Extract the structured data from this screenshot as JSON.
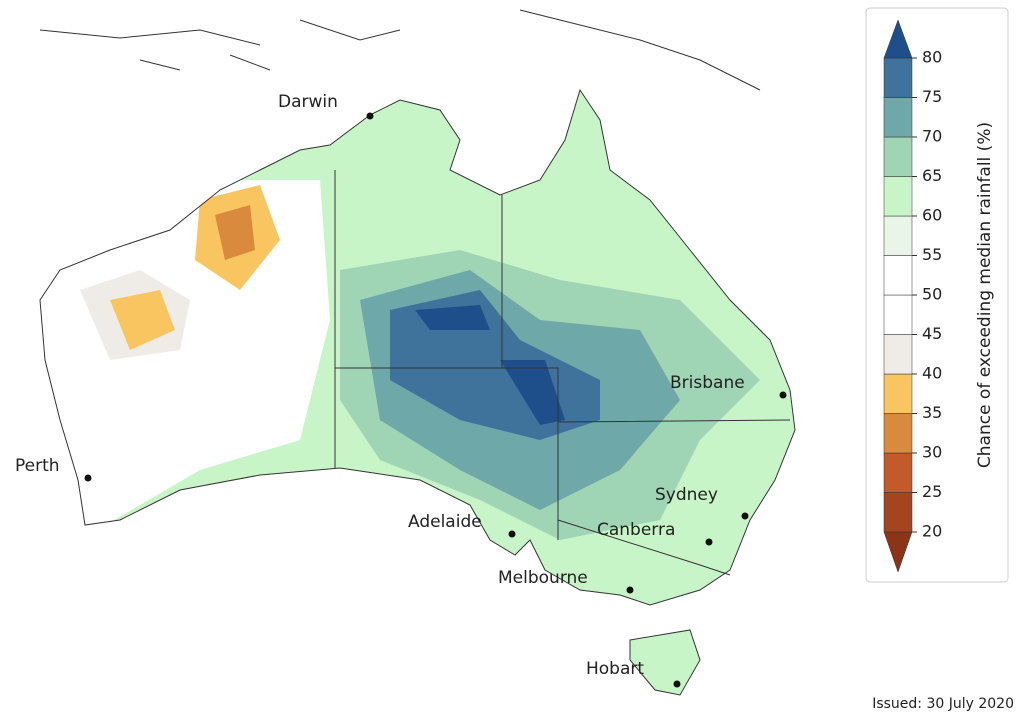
{
  "map": {
    "cities": [
      {
        "name": "Darwin"
      },
      {
        "name": "Perth"
      },
      {
        "name": "Adelaide"
      },
      {
        "name": "Melbourne"
      },
      {
        "name": "Canberra"
      },
      {
        "name": "Sydney"
      },
      {
        "name": "Brisbane"
      },
      {
        "name": "Hobart"
      }
    ]
  },
  "colorbar": {
    "label": "Chance of exceeding median rainfall (%)",
    "ticks": [
      20,
      25,
      30,
      35,
      40,
      45,
      50,
      55,
      60,
      65,
      70,
      75,
      80
    ],
    "colors": [
      "#a3461f",
      "#c25a2c",
      "#d98a3c",
      "#f9c561",
      "#efebe7",
      "#ffffff",
      "#ffffff",
      "#eaf5ea",
      "#c8f5c8",
      "#9fd4b5",
      "#6fa8a8",
      "#3f739c"
    ],
    "under_color": "#8b3418",
    "over_color": "#1f4f8a"
  },
  "footer": {
    "issued": "Issued: 30 July 2020"
  }
}
